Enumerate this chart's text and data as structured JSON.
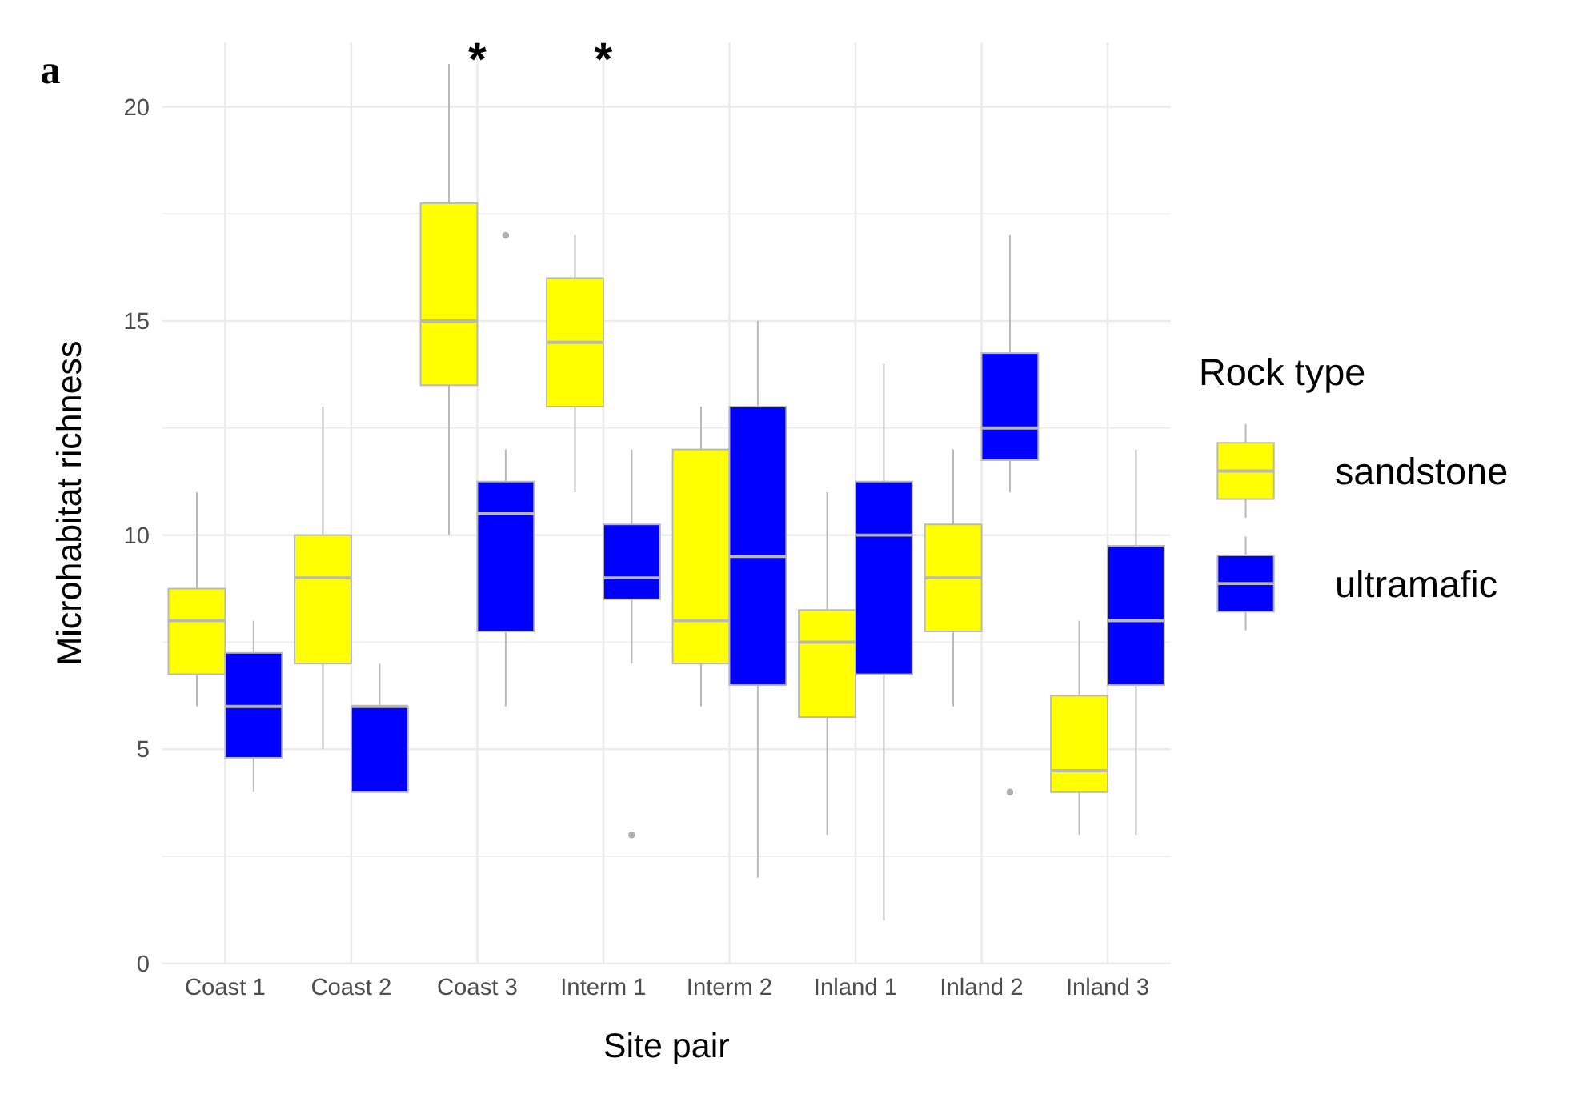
{
  "chart_data": {
    "type": "box",
    "xlabel": "Site pair",
    "ylabel": "Microhabitat richness",
    "legend_title": "Rock type",
    "legend": "right",
    "grid": true,
    "categories": [
      "Coast 1",
      "Coast 2",
      "Coast 3",
      "Interm 1",
      "Interm 2",
      "Inland 1",
      "Inland 2",
      "Inland 3"
    ],
    "ylim": [
      0,
      21.5
    ],
    "yticks": [
      0,
      {
        "value": 2.5,
        "label": null
      },
      5,
      {
        "value": 7.5,
        "label": null
      },
      10,
      {
        "value": 12.5,
        "label": null
      },
      15,
      {
        "value": 17.5,
        "label": null
      },
      20
    ],
    "series": [
      {
        "name": "sandstone",
        "color": "#ffff00",
        "boxes": [
          {
            "low": 6,
            "q1": 6.75,
            "median": 8,
            "q3": 8.75,
            "high": 11
          },
          {
            "low": 5,
            "q1": 7,
            "median": 9,
            "q3": 10,
            "high": 13
          },
          {
            "low": 10,
            "q1": 13.5,
            "median": 15,
            "q3": 17.75,
            "high": 21
          },
          {
            "low": 11,
            "q1": 13,
            "median": 14.5,
            "q3": 16,
            "high": 17
          },
          {
            "low": 6,
            "q1": 7,
            "median": 8,
            "q3": 12,
            "high": 13
          },
          {
            "low": 3,
            "q1": 5.75,
            "median": 7.5,
            "q3": 8.25,
            "high": 11
          },
          {
            "low": 6,
            "q1": 7.75,
            "median": 9,
            "q3": 10.25,
            "high": 12
          },
          {
            "low": 3,
            "q1": 4,
            "median": 4.5,
            "q3": 6.25,
            "high": 8
          }
        ]
      },
      {
        "name": "ultramafic",
        "color": "#0000ff",
        "boxes": [
          {
            "low": 4,
            "q1": 4.8,
            "median": 6,
            "q3": 7.25,
            "high": 8
          },
          {
            "low": 4,
            "q1": 4,
            "median": 6,
            "q3": 6,
            "high": 7
          },
          {
            "low": 6,
            "q1": 7.75,
            "median": 10.5,
            "q3": 11.25,
            "high": 12,
            "outliers": [
              17
            ]
          },
          {
            "low": 7,
            "q1": 8.5,
            "median": 9,
            "q3": 10.25,
            "high": 12,
            "outliers": [
              3
            ]
          },
          {
            "low": 2,
            "q1": 6.5,
            "median": 9.5,
            "q3": 13,
            "high": 15
          },
          {
            "low": 1,
            "q1": 6.75,
            "median": 10,
            "q3": 11.25,
            "high": 14
          },
          {
            "low": 11,
            "q1": 11.75,
            "median": 12.5,
            "q3": 14.25,
            "high": 17,
            "outliers": [
              4
            ]
          },
          {
            "low": 3,
            "q1": 6.5,
            "median": 8,
            "q3": 9.75,
            "high": 12
          }
        ]
      }
    ],
    "annotations": [
      "a",
      "*",
      "*"
    ]
  }
}
